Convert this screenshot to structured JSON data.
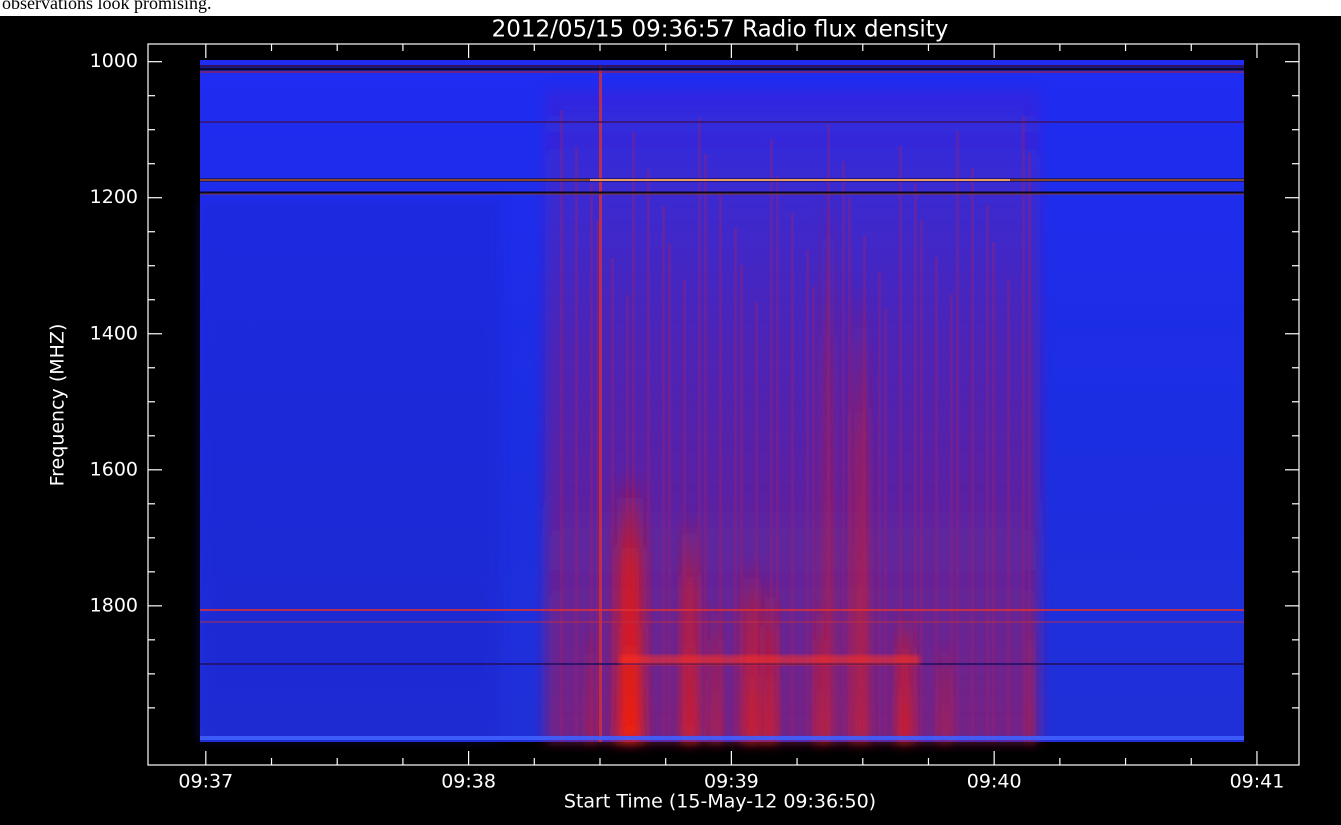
{
  "page_fragment": "observations look promising.",
  "chart_data": {
    "type": "spectrogram",
    "title": "2012/05/15 09:36:57 Radio flux density",
    "xlabel": "Start Time (15-May-12 09:36:50)",
    "ylabel": "Frequency (MHZ)",
    "xlim": [
      36.78,
      41.16
    ],
    "xticks": [
      {
        "value": 37,
        "label": "09:37"
      },
      {
        "value": 38,
        "label": "09:38"
      },
      {
        "value": 39,
        "label": "09:39"
      },
      {
        "value": 40,
        "label": "09:40"
      },
      {
        "value": 41,
        "label": "09:41"
      }
    ],
    "x_minor_ticks": [
      37.25,
      37.5,
      37.75,
      38.25,
      38.5,
      38.75,
      39.25,
      39.5,
      39.75,
      40.25,
      40.5,
      40.75
    ],
    "ylim": [
      2034,
      974
    ],
    "yticks": [
      1000,
      1200,
      1400,
      1600,
      1800
    ],
    "y_minor_ticks": [
      1050,
      1100,
      1150,
      1250,
      1300,
      1350,
      1450,
      1500,
      1550,
      1650,
      1700,
      1750,
      1850,
      1900,
      1950
    ]
  }
}
